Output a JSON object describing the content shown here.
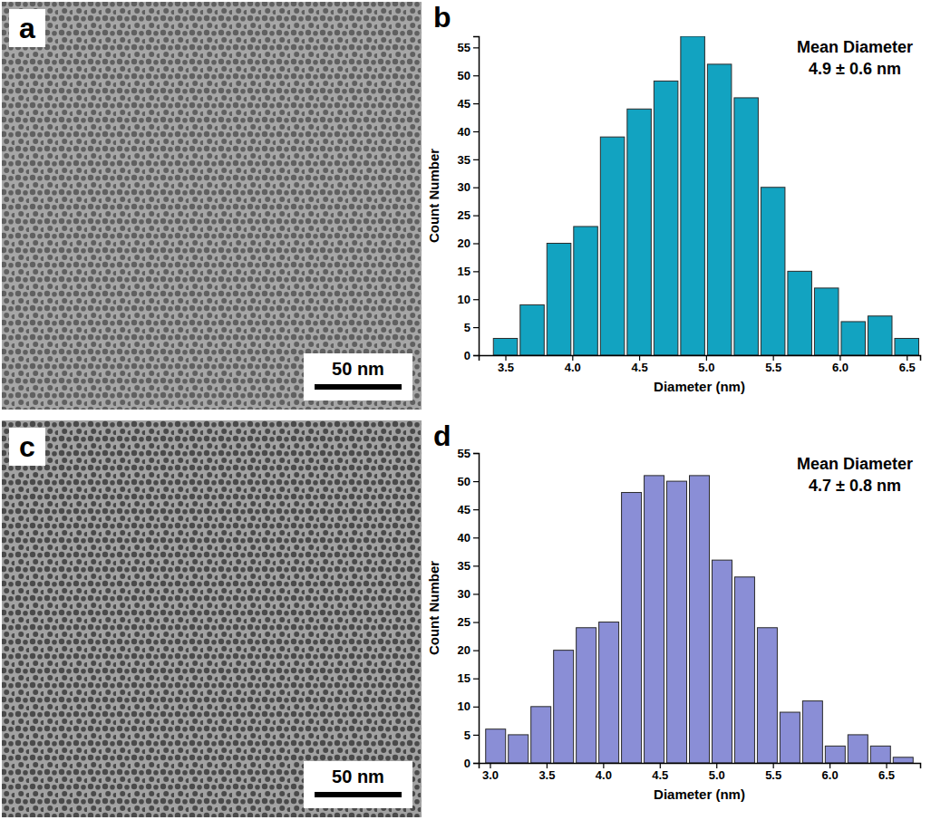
{
  "chart_data": [
    {
      "type": "image",
      "panel": "a",
      "annotations": [
        "50 nm"
      ]
    },
    {
      "type": "histogram",
      "panel": "b",
      "bins": [
        3.4,
        3.6,
        3.8,
        4.0,
        4.2,
        4.4,
        4.6,
        4.8,
        5.0,
        5.2,
        5.4,
        5.6,
        5.8,
        6.0,
        6.2,
        6.4,
        6.6
      ],
      "values": [
        3,
        9,
        20,
        23,
        39,
        44,
        49,
        57,
        52,
        46,
        30,
        15,
        12,
        6,
        7,
        3
      ],
      "color": "#12a3c1",
      "x_label": "Diameter (nm)",
      "y_label": "Count Number",
      "annotations": [
        "Mean Diameter",
        "4.9 ± 0.6 nm"
      ],
      "xlim": [
        3.3,
        6.6
      ],
      "xticks": [
        3.5,
        {
          "value": 4,
          "label": "4.0"
        },
        4.5,
        {
          "value": 5,
          "label": "5.0"
        },
        5.5,
        {
          "value": 6,
          "label": "6.0"
        },
        6.5
      ],
      "ylim": [
        0,
        57
      ],
      "yticks": [
        0,
        5,
        10,
        15,
        20,
        25,
        30,
        35,
        40,
        45,
        50,
        55
      ]
    },
    {
      "type": "image",
      "panel": "c",
      "annotations": [
        "50 nm"
      ]
    },
    {
      "type": "histogram",
      "panel": "d",
      "bins": [
        2.95,
        3.15,
        3.35,
        3.55,
        3.75,
        3.95,
        4.15,
        4.35,
        4.55,
        4.75,
        4.95,
        5.15,
        5.35,
        5.55,
        5.75,
        5.95,
        6.15,
        6.35,
        6.55,
        6.75
      ],
      "values": [
        6,
        5,
        10,
        20,
        24,
        25,
        48,
        51,
        50,
        51,
        36,
        33,
        24,
        9,
        11,
        3,
        5,
        3,
        1
      ],
      "color": "#8a8ed6",
      "x_label": "Diameter (nm)",
      "y_label": "Count Number",
      "annotations": [
        "Mean Diameter",
        "4.7 ± 0.8 nm"
      ],
      "xlim": [
        2.9,
        6.8
      ],
      "xticks": [
        {
          "value": 3,
          "label": "3.0"
        },
        3.5,
        {
          "value": 4,
          "label": "4.0"
        },
        4.5,
        {
          "value": 5,
          "label": "5.0"
        },
        5.5,
        {
          "value": 6,
          "label": "6.0"
        },
        6.5
      ],
      "ylim": [
        0,
        55
      ],
      "yticks": [
        0,
        5,
        10,
        15,
        20,
        25,
        30,
        35,
        40,
        45,
        50,
        55
      ]
    }
  ]
}
